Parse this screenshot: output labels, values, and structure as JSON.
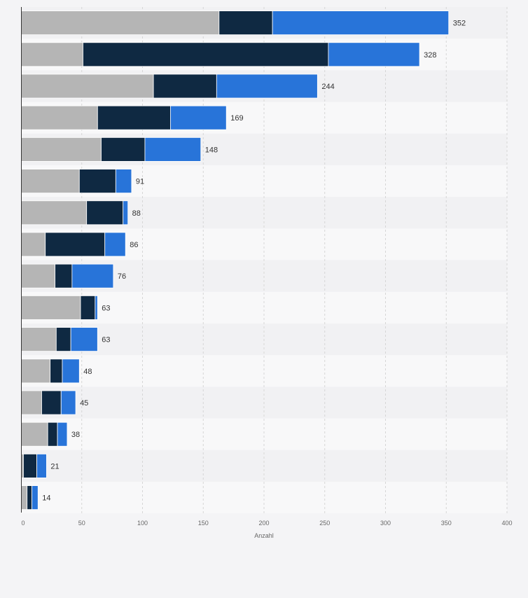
{
  "chart_data": {
    "type": "bar",
    "orientation": "horizontal",
    "stacked": true,
    "xlabel": "Anzahl",
    "ylabel": "",
    "xlim": [
      0,
      400
    ],
    "x_ticks": [
      0,
      50,
      100,
      150,
      200,
      250,
      300,
      350,
      400
    ],
    "grid": true,
    "legend": "none",
    "categories": [
      "",
      "",
      "",
      "",
      "",
      "",
      "",
      "",
      "",
      "",
      "",
      "",
      "",
      "",
      "",
      ""
    ],
    "totals": [
      352,
      328,
      244,
      169,
      148,
      91,
      88,
      86,
      76,
      63,
      63,
      48,
      45,
      38,
      21,
      14
    ],
    "series": [
      {
        "color": "#b5b5b5",
        "values": [
          163,
          51,
          109,
          63,
          66,
          48,
          54,
          20,
          28,
          49,
          29,
          24,
          17,
          22,
          2,
          5
        ]
      },
      {
        "color": "#0f2942",
        "values": [
          44,
          202,
          52,
          60,
          36,
          30,
          30,
          49,
          14,
          12,
          12,
          10,
          16,
          8,
          11,
          4
        ]
      },
      {
        "color": "#2874d9",
        "values": [
          145,
          75,
          83,
          46,
          46,
          13,
          4,
          17,
          34,
          2,
          22,
          14,
          12,
          8,
          8,
          5
        ]
      }
    ]
  }
}
